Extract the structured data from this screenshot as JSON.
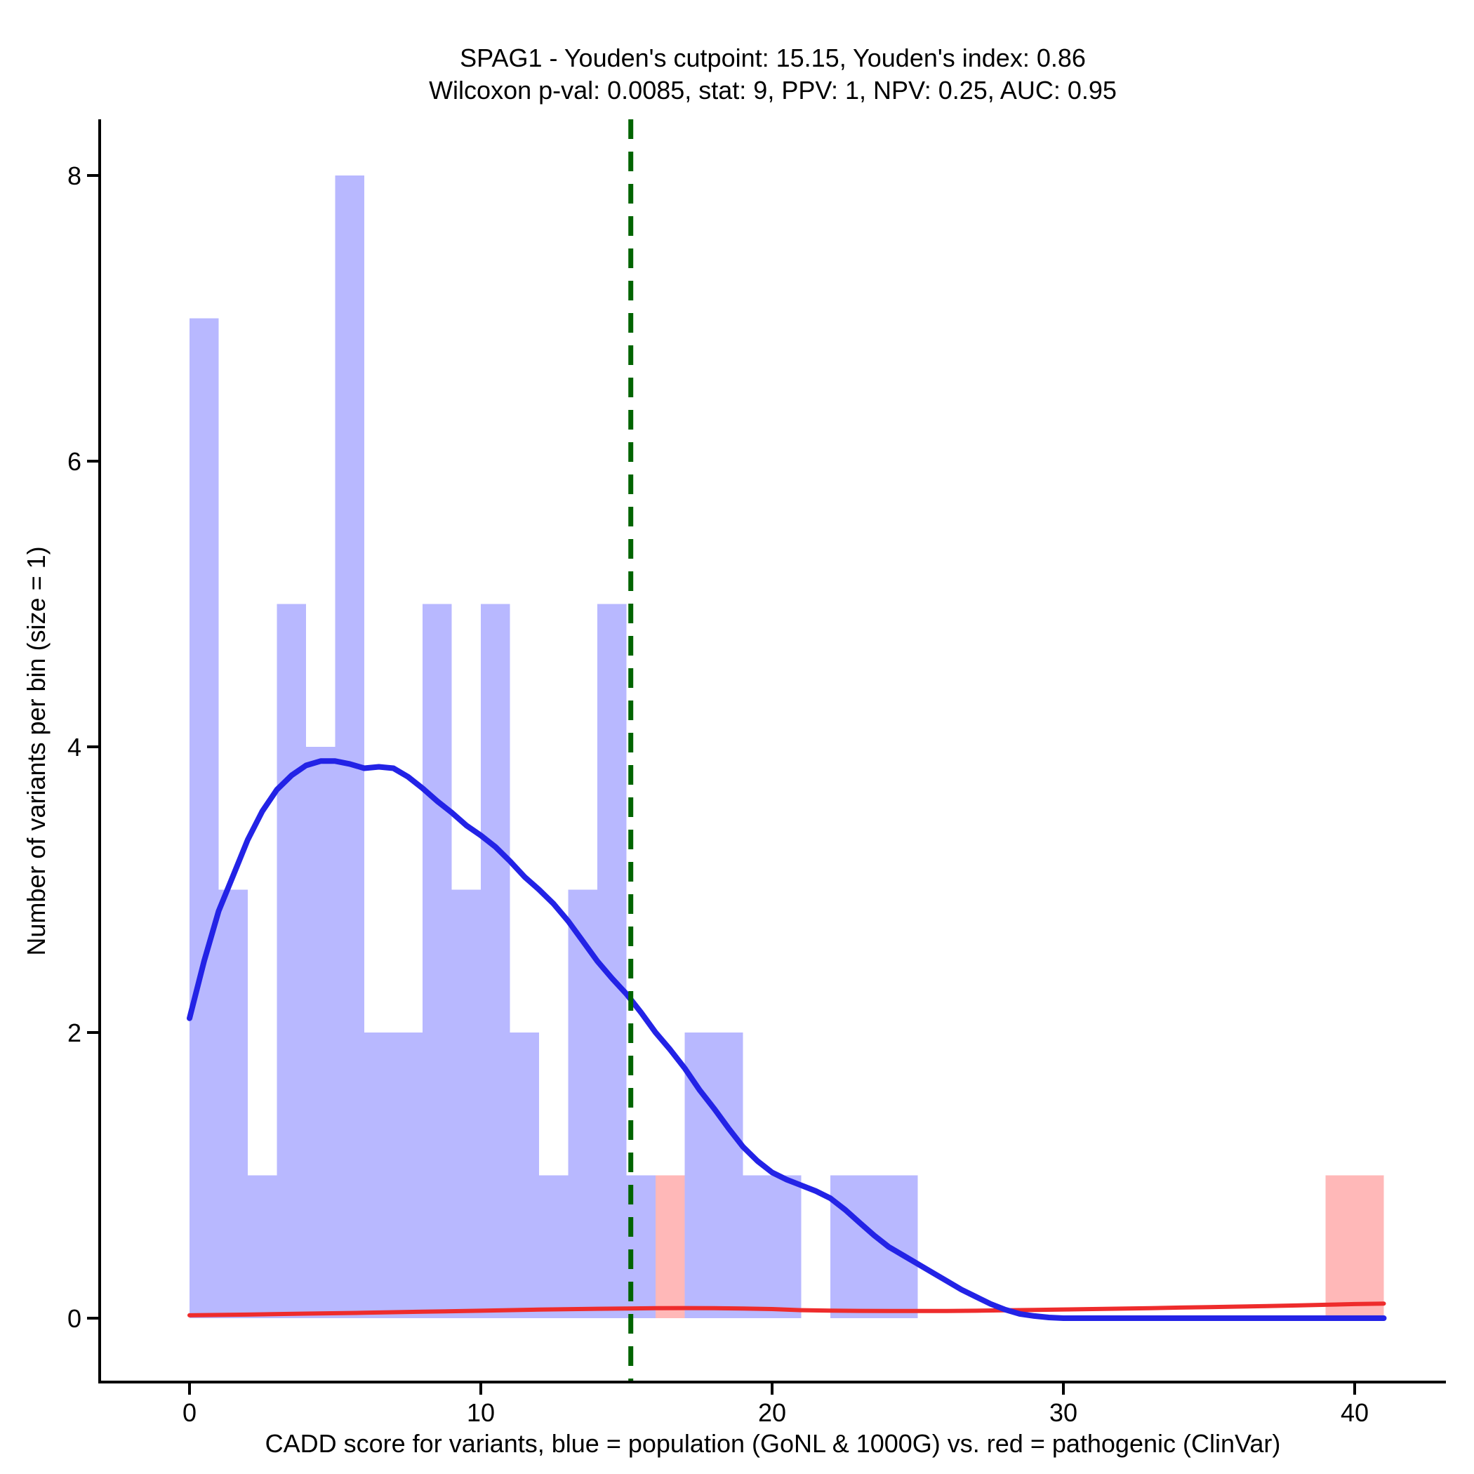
{
  "chart_data": {
    "type": "bar",
    "subtype": "histogram_with_density_overlay",
    "title": [
      "SPAG1 - Youden's cutpoint: 15.15, Youden's index: 0.86",
      "Wilcoxon p-val: 0.0085, stat: 9, PPV: 1, NPV: 0.25, AUC: 0.95"
    ],
    "xlabel": "CADD score for variants, blue = population (GoNL & 1000G) vs. red = pathogenic (ClinVar)",
    "ylabel": "Number of variants per bin (size = 1)",
    "xticks": [
      0,
      10,
      20,
      30,
      40
    ],
    "yticks": [
      0,
      2,
      4,
      6,
      8
    ],
    "xlim": [
      -3.1,
      43.1
    ],
    "ylim": [
      -0.45,
      8.4
    ],
    "bin_width": 1,
    "grid": "off",
    "legend": "none",
    "stats": {
      "gene": "SPAG1",
      "youdens_cutpoint": 15.15,
      "youdens_index": 0.86,
      "wilcoxon_p_val": 0.0085,
      "stat": 9,
      "PPV": 1,
      "NPV": 0.25,
      "AUC": 0.95
    },
    "series": [
      {
        "name": "population (GoNL & 1000G) histogram",
        "role": "histogram",
        "color": "rgba(0,0,255,0.28)",
        "bins": [
          [
            0,
            7
          ],
          [
            1,
            3
          ],
          [
            2,
            1
          ],
          [
            3,
            5
          ],
          [
            4,
            4
          ],
          [
            5,
            8
          ],
          [
            6,
            2
          ],
          [
            7,
            2
          ],
          [
            8,
            5
          ],
          [
            9,
            3
          ],
          [
            10,
            5
          ],
          [
            11,
            2
          ],
          [
            12,
            1
          ],
          [
            13,
            3
          ],
          [
            14,
            5
          ],
          [
            15,
            1
          ],
          [
            17,
            2
          ],
          [
            18,
            2
          ],
          [
            19,
            1
          ],
          [
            20,
            1
          ],
          [
            22,
            1
          ],
          [
            23,
            1
          ],
          [
            24,
            1
          ]
        ]
      },
      {
        "name": "pathogenic (ClinVar) histogram",
        "role": "histogram",
        "color": "rgba(255,0,0,0.28)",
        "bins": [
          [
            16,
            1
          ],
          [
            39,
            1
          ],
          [
            40,
            1
          ]
        ]
      },
      {
        "name": "population (GoNL & 1000G) density",
        "role": "density",
        "color": "#2323e6",
        "points": [
          [
            0,
            2.1
          ],
          [
            0.5,
            2.5
          ],
          [
            1,
            2.85
          ],
          [
            1.5,
            3.1
          ],
          [
            2,
            3.35
          ],
          [
            2.5,
            3.55
          ],
          [
            3,
            3.7
          ],
          [
            3.5,
            3.8
          ],
          [
            4,
            3.87
          ],
          [
            4.5,
            3.9
          ],
          [
            5,
            3.9
          ],
          [
            5.5,
            3.88
          ],
          [
            6,
            3.85
          ],
          [
            6.5,
            3.86
          ],
          [
            7,
            3.85
          ],
          [
            7.5,
            3.79
          ],
          [
            8,
            3.71
          ],
          [
            8.5,
            3.62
          ],
          [
            9,
            3.54
          ],
          [
            9.5,
            3.45
          ],
          [
            10,
            3.38
          ],
          [
            10.5,
            3.3
          ],
          [
            11,
            3.2
          ],
          [
            11.5,
            3.09
          ],
          [
            12,
            3.0
          ],
          [
            12.5,
            2.9
          ],
          [
            13,
            2.78
          ],
          [
            13.5,
            2.64
          ],
          [
            14,
            2.5
          ],
          [
            14.5,
            2.38
          ],
          [
            15,
            2.27
          ],
          [
            15.5,
            2.14
          ],
          [
            16,
            2.0
          ],
          [
            16.5,
            1.88
          ],
          [
            17,
            1.75
          ],
          [
            17.5,
            1.6
          ],
          [
            18,
            1.47
          ],
          [
            18.5,
            1.33
          ],
          [
            19,
            1.2
          ],
          [
            19.5,
            1.1
          ],
          [
            20,
            1.02
          ],
          [
            20.5,
            0.97
          ],
          [
            21,
            0.93
          ],
          [
            21.5,
            0.89
          ],
          [
            22,
            0.84
          ],
          [
            22.5,
            0.76
          ],
          [
            23,
            0.67
          ],
          [
            23.5,
            0.58
          ],
          [
            24,
            0.5
          ],
          [
            24.5,
            0.44
          ],
          [
            25,
            0.38
          ],
          [
            25.5,
            0.32
          ],
          [
            26,
            0.26
          ],
          [
            26.5,
            0.2
          ],
          [
            27,
            0.15
          ],
          [
            27.5,
            0.1
          ],
          [
            28,
            0.06
          ],
          [
            28.5,
            0.03
          ],
          [
            29,
            0.015
          ],
          [
            29.5,
            0.005
          ],
          [
            30,
            0
          ],
          [
            32,
            0
          ],
          [
            34,
            0
          ],
          [
            36,
            0
          ],
          [
            38,
            0
          ],
          [
            40,
            0
          ],
          [
            41,
            0
          ]
        ]
      },
      {
        "name": "pathogenic (ClinVar) density",
        "role": "density",
        "color": "#ee2c2c",
        "points": [
          [
            0,
            0.02
          ],
          [
            2,
            0.025
          ],
          [
            4,
            0.032
          ],
          [
            6,
            0.038
          ],
          [
            8,
            0.045
          ],
          [
            10,
            0.052
          ],
          [
            12,
            0.06
          ],
          [
            14,
            0.066
          ],
          [
            15,
            0.068
          ],
          [
            16,
            0.07
          ],
          [
            17,
            0.071
          ],
          [
            18,
            0.07
          ],
          [
            19,
            0.068
          ],
          [
            20,
            0.064
          ],
          [
            21,
            0.056
          ],
          [
            22,
            0.053
          ],
          [
            23,
            0.051
          ],
          [
            24,
            0.05
          ],
          [
            25,
            0.05
          ],
          [
            26,
            0.05
          ],
          [
            27,
            0.052
          ],
          [
            28,
            0.055
          ],
          [
            29,
            0.058
          ],
          [
            30,
            0.061
          ],
          [
            31,
            0.064
          ],
          [
            32,
            0.067
          ],
          [
            33,
            0.07
          ],
          [
            34,
            0.074
          ],
          [
            35,
            0.077
          ],
          [
            36,
            0.081
          ],
          [
            37,
            0.085
          ],
          [
            38,
            0.089
          ],
          [
            39,
            0.094
          ],
          [
            40,
            0.099
          ],
          [
            41,
            0.102
          ]
        ]
      }
    ],
    "cutpoint_line": {
      "x": 15.15,
      "color": "#006400",
      "style": "dashed"
    },
    "axis_color": "#000000"
  }
}
